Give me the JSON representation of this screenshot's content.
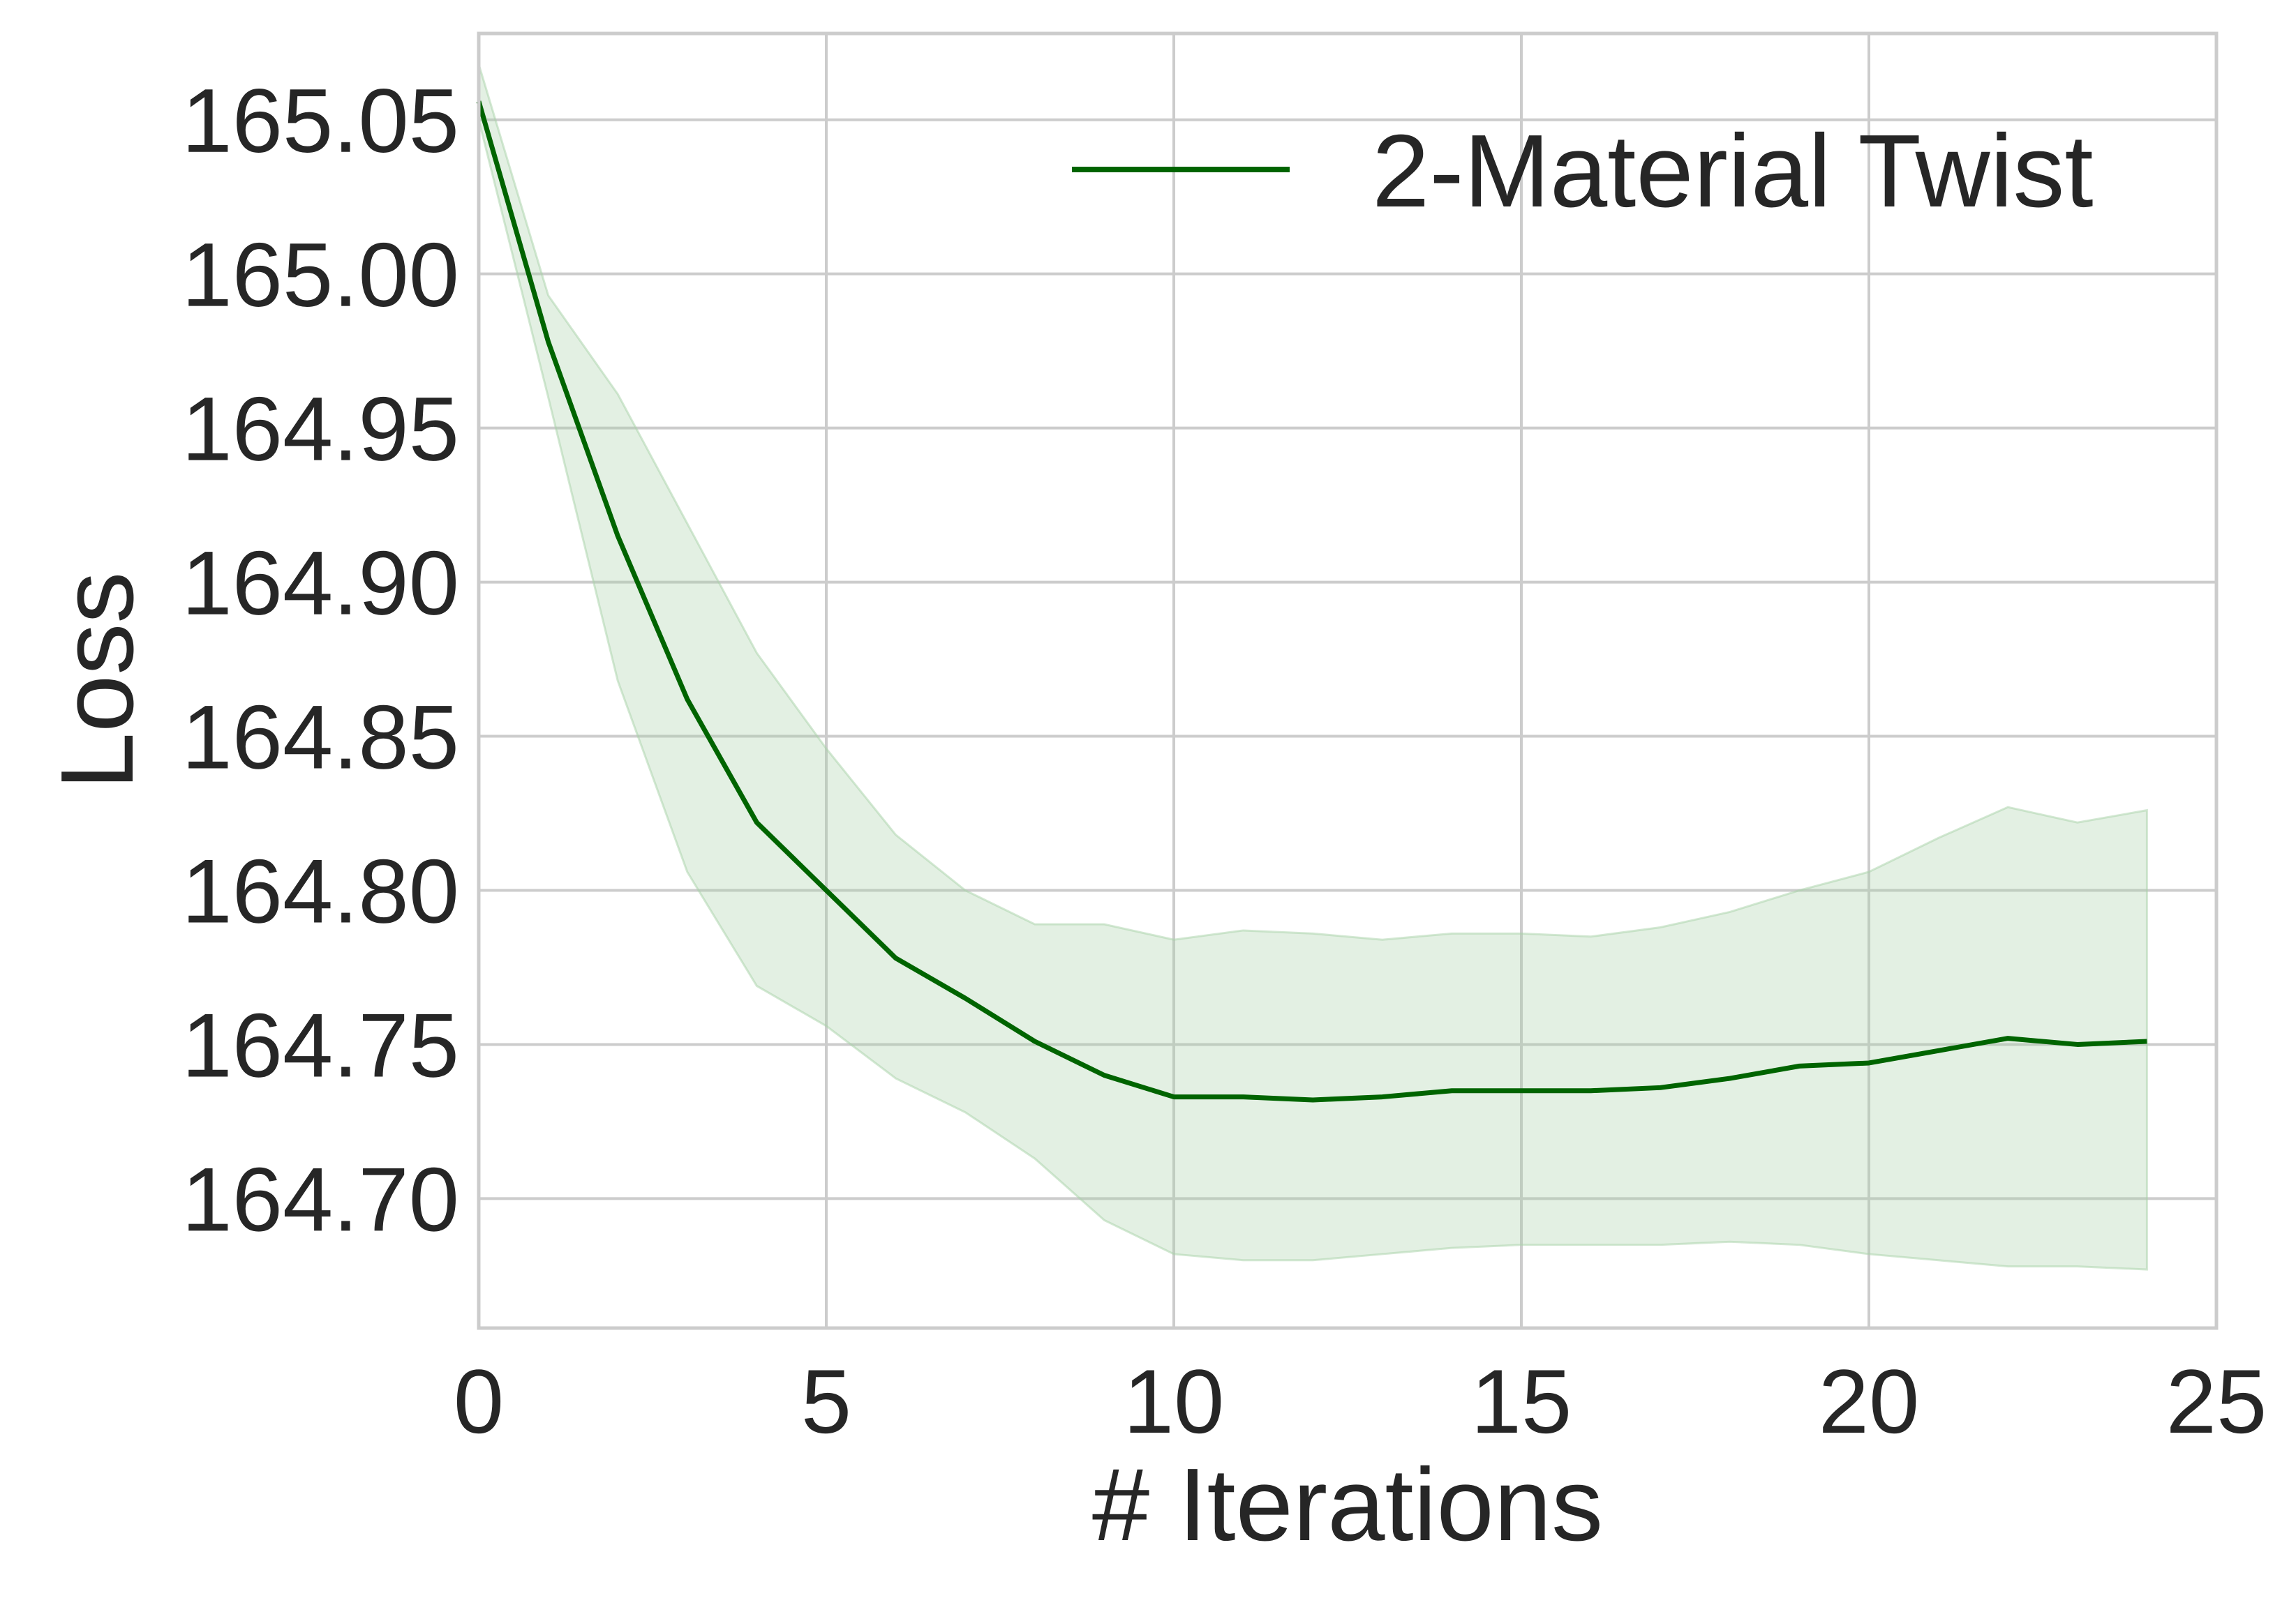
{
  "chart_data": {
    "type": "line",
    "title": "",
    "xlabel": "# Iterations",
    "ylabel": "Loss",
    "xlim": [
      0,
      25
    ],
    "ylim": [
      164.658,
      165.078
    ],
    "xticks": [
      "0",
      "5",
      "10",
      "15",
      "20",
      "25"
    ],
    "yticks": [
      "164.70",
      "164.75",
      "164.80",
      "164.85",
      "164.90",
      "164.95",
      "165.00",
      "165.05"
    ],
    "grid": true,
    "legend": {
      "position": "top-right",
      "entries": [
        "2-Material Twist"
      ]
    },
    "colors": {
      "line": "#006400",
      "band": "#a8d1a8",
      "grid": "#cccccc",
      "spine": "#cccccc"
    },
    "series": [
      {
        "name": "2-Material Twist",
        "x": [
          0,
          1,
          2,
          3,
          4,
          5,
          6,
          7,
          8,
          9,
          10,
          11,
          12,
          13,
          14,
          15,
          16,
          17,
          18,
          19,
          20,
          21,
          22,
          23,
          24
        ],
        "y": [
          165.056,
          164.978,
          164.915,
          164.862,
          164.822,
          164.8,
          164.778,
          164.765,
          164.751,
          164.74,
          164.733,
          164.733,
          164.732,
          164.733,
          164.735,
          164.735,
          164.735,
          164.736,
          164.739,
          164.743,
          164.744,
          164.748,
          164.752,
          164.75,
          164.751
        ],
        "lower": [
          165.05,
          164.96,
          164.868,
          164.806,
          164.769,
          164.756,
          164.739,
          164.728,
          164.713,
          164.693,
          164.682,
          164.68,
          164.68,
          164.682,
          164.684,
          164.685,
          164.685,
          164.685,
          164.686,
          164.685,
          164.682,
          164.68,
          164.678,
          164.678,
          164.677
        ],
        "upper": [
          165.068,
          164.993,
          164.961,
          164.919,
          164.877,
          164.846,
          164.818,
          164.8,
          164.789,
          164.789,
          164.784,
          164.787,
          164.786,
          164.784,
          164.786,
          164.786,
          164.785,
          164.788,
          164.793,
          164.8,
          164.806,
          164.817,
          164.827,
          164.822,
          164.826
        ]
      }
    ]
  }
}
